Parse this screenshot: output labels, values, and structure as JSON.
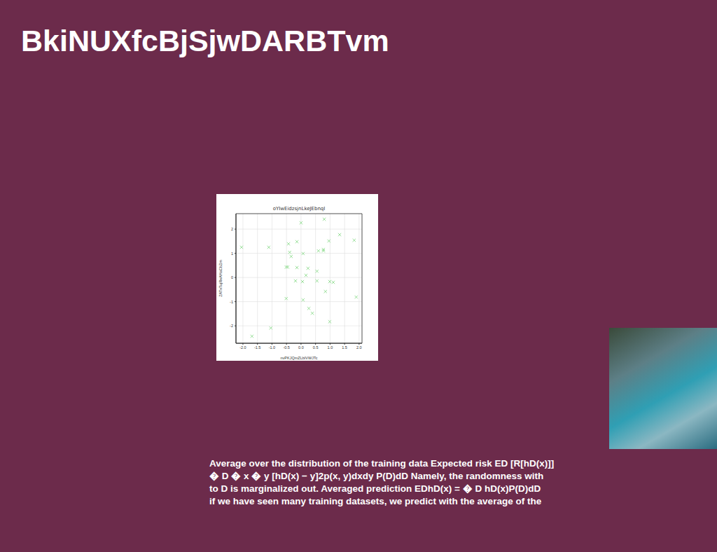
{
  "title": "BkiNUXfcBjSjwDARBTvm",
  "chart_data": {
    "type": "scatter",
    "title": "oYIwEidzsjnLkeJEbnqI",
    "x_label": "nvPKJQmZLbIVWJTc",
    "y_label": "ZATxTujRxAHaCbZm",
    "color": "#90dd90",
    "marker": "x",
    "grid": true,
    "xlim": [
      -2.24,
      2.1
    ],
    "ylim": [
      -2.72,
      2.64
    ],
    "xticks": [
      {
        "value": -2,
        "label": "-2.0"
      },
      {
        "value": -1.5,
        "label": "-1.5"
      },
      {
        "value": -1,
        "label": "-1.0"
      },
      {
        "value": -0.5,
        "label": "-0.5"
      },
      {
        "value": 0,
        "label": "0.0"
      },
      {
        "value": 0.5,
        "label": "0.5"
      },
      {
        "value": 1,
        "label": "1.0"
      },
      {
        "value": 1.5,
        "label": "1.5"
      },
      {
        "value": 2,
        "label": "2.0"
      }
    ],
    "yticks": [
      -2,
      -1,
      0,
      1,
      2
    ],
    "x": [
      -2.05,
      -1.69,
      -1.11,
      -1.04,
      -0.51,
      -0.51,
      -0.46,
      -0.43,
      -0.39,
      -0.34,
      -0.19,
      -0.14,
      -0.14,
      0.0,
      0.05,
      0.07,
      0.07,
      0.17,
      0.24,
      0.27,
      0.39,
      0.55,
      0.55,
      0.6,
      0.77,
      0.77,
      0.8,
      0.84,
      0.96,
      0.99,
      0.99,
      1.11,
      1.33,
      1.83,
      1.9
    ],
    "values": [
      1.25,
      -2.43,
      1.25,
      -2.09,
      -0.87,
      0.43,
      0.43,
      1.39,
      1.04,
      0.87,
      -0.14,
      1.48,
      0.41,
      2.26,
      -0.17,
      0.99,
      -0.93,
      0.09,
      0.38,
      -1.28,
      -1.48,
      0.26,
      -0.14,
      1.1,
      1.1,
      1.16,
      2.41,
      -0.58,
      1.51,
      -0.17,
      -1.83,
      -0.2,
      1.77,
      1.54,
      -0.81
    ]
  },
  "body": [
    "Average over the distribution of the training data Expected risk ED [R[hD(x)]]",
    "� D � x � y [hD(x) − y]2p(x, y)dxdy P(D)dD Namely, the randomness with",
    "to D is marginalized out. Averaged prediction EDhD(x) = � D hD(x)P(D)dD",
    "if we have seen many training datasets, we predict with the average of the"
  ]
}
